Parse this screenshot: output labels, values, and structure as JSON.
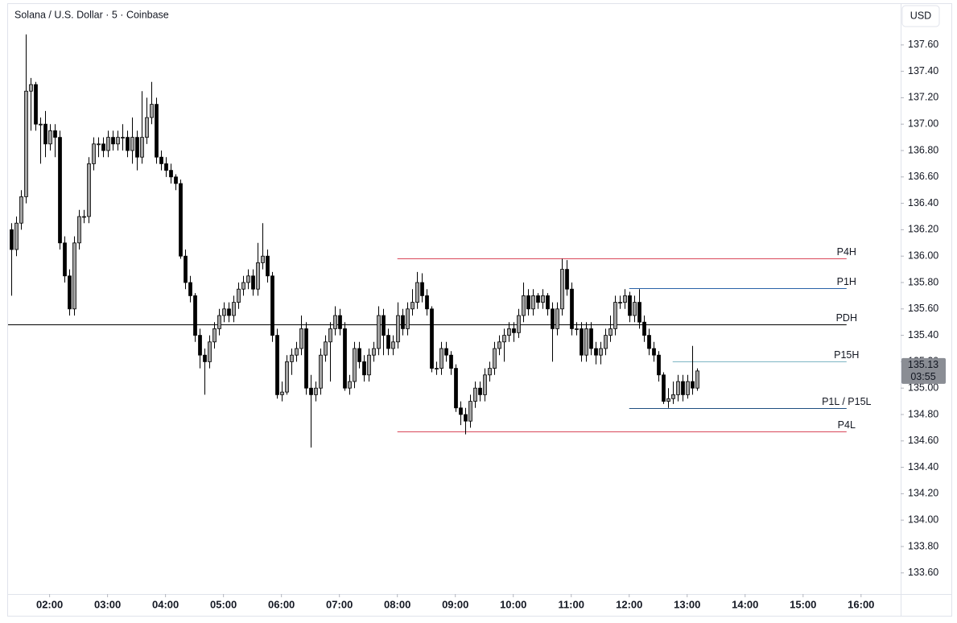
{
  "chart_data": {
    "type": "candlestick",
    "title": "Solana / U.S. Dollar · 5 · Coinbase",
    "currency": "USD",
    "last_price": 135.13,
    "countdown": "03:55",
    "up_color": "#a3a3a3",
    "down_color": "#000000",
    "xlim": [
      "01:17",
      "16:41"
    ],
    "xticks": [
      "02:00",
      "03:00",
      "04:00",
      "05:00",
      "06:00",
      "07:00",
      "08:00",
      "09:00",
      "10:00",
      "11:00",
      "12:00",
      "13:00",
      "14:00",
      "15:00",
      "16:00"
    ],
    "ylim": [
      133.44,
      137.91
    ],
    "yticks": [
      {
        "value": 133.6,
        "label": "133.60"
      },
      {
        "value": 133.8,
        "label": "133.80"
      },
      {
        "value": 134,
        "label": "134.00"
      },
      {
        "value": 134.2,
        "label": "134.20"
      },
      {
        "value": 134.4,
        "label": "134.40"
      },
      {
        "value": 134.6,
        "label": "134.60"
      },
      {
        "value": 134.8,
        "label": "134.80"
      },
      {
        "value": 135,
        "label": "135.00"
      },
      {
        "value": 135.2,
        "label": "135.20"
      },
      {
        "value": 135.4,
        "label": "135.40"
      },
      {
        "value": 135.6,
        "label": "135.60"
      },
      {
        "value": 135.8,
        "label": "135.80"
      },
      {
        "value": 136,
        "label": "136.00"
      },
      {
        "value": 136.2,
        "label": "136.20"
      },
      {
        "value": 136.4,
        "label": "136.40"
      },
      {
        "value": 136.6,
        "label": "136.60"
      },
      {
        "value": 136.8,
        "label": "136.80"
      },
      {
        "value": 137,
        "label": "137.00"
      },
      {
        "value": 137.2,
        "label": "137.20"
      },
      {
        "value": 137.4,
        "label": "137.40"
      },
      {
        "value": 137.6,
        "label": "137.60"
      }
    ],
    "levels": [
      {
        "label": "P4H",
        "value": 135.98,
        "start": "08:00",
        "end": "15:45",
        "color": "#d9485a"
      },
      {
        "label": "P1H",
        "value": 135.76,
        "start": "12:00",
        "end": "15:45",
        "color": "#2962a8"
      },
      {
        "label": "PDH",
        "value": 135.48,
        "start": "01:17",
        "end": "15:45",
        "color": "#000000"
      },
      {
        "label": "P15H",
        "value": 135.2,
        "start": "12:45",
        "end": "15:45",
        "color": "#7fb6c4"
      },
      {
        "label": "P1L / P15L",
        "value": 134.85,
        "start": "12:00",
        "end": "15:45",
        "color": "#1f4f80"
      },
      {
        "label": "P4L",
        "value": 134.67,
        "start": "08:00",
        "end": "15:45",
        "color": "#d9485a"
      }
    ],
    "x": [
      "01:20",
      "01:25",
      "01:30",
      "01:35",
      "01:40",
      "01:45",
      "01:50",
      "01:55",
      "02:00",
      "02:05",
      "02:10",
      "02:15",
      "02:20",
      "02:25",
      "02:30",
      "02:35",
      "02:40",
      "02:45",
      "02:50",
      "02:55",
      "03:00",
      "03:05",
      "03:10",
      "03:15",
      "03:20",
      "03:25",
      "03:30",
      "03:35",
      "03:40",
      "03:45",
      "03:50",
      "03:55",
      "04:00",
      "04:05",
      "04:10",
      "04:15",
      "04:20",
      "04:25",
      "04:30",
      "04:35",
      "04:40",
      "04:45",
      "04:50",
      "04:55",
      "05:00",
      "05:05",
      "05:10",
      "05:15",
      "05:20",
      "05:25",
      "05:30",
      "05:35",
      "05:40",
      "05:45",
      "05:50",
      "05:55",
      "06:00",
      "06:05",
      "06:10",
      "06:15",
      "06:20",
      "06:25",
      "06:30",
      "06:35",
      "06:40",
      "06:45",
      "06:50",
      "06:55",
      "07:00",
      "07:05",
      "07:10",
      "07:15",
      "07:20",
      "07:25",
      "07:30",
      "07:35",
      "07:40",
      "07:45",
      "07:50",
      "07:55",
      "08:00",
      "08:05",
      "08:10",
      "08:15",
      "08:20",
      "08:25",
      "08:30",
      "08:35",
      "08:40",
      "08:45",
      "08:50",
      "08:55",
      "09:00",
      "09:05",
      "09:10",
      "09:15",
      "09:20",
      "09:25",
      "09:30",
      "09:35",
      "09:40",
      "09:45",
      "09:50",
      "09:55",
      "10:00",
      "10:05",
      "10:10",
      "10:15",
      "10:20",
      "10:25",
      "10:30",
      "10:35",
      "10:40",
      "10:45",
      "10:50",
      "10:55",
      "11:00",
      "11:05",
      "11:10",
      "11:15",
      "11:20",
      "11:25",
      "11:30",
      "11:35",
      "11:40",
      "11:45",
      "11:50",
      "11:55",
      "12:00",
      "12:05",
      "12:10",
      "12:15",
      "12:20",
      "12:25",
      "12:30",
      "12:35",
      "12:40",
      "12:45",
      "12:50",
      "12:55",
      "13:00",
      "13:05",
      "13:10"
    ],
    "ohlc": [
      [
        136.2,
        136.25,
        135.7,
        136.05
      ],
      [
        136.05,
        136.3,
        136.0,
        136.25
      ],
      [
        136.25,
        136.5,
        136.2,
        136.45
      ],
      [
        136.45,
        137.68,
        136.4,
        137.25
      ],
      [
        137.25,
        137.35,
        136.95,
        137.3
      ],
      [
        137.3,
        137.32,
        136.95,
        137.0
      ],
      [
        137.0,
        137.05,
        136.7,
        137.0
      ],
      [
        137.0,
        137.1,
        136.75,
        136.85
      ],
      [
        136.85,
        137.0,
        136.8,
        136.95
      ],
      [
        136.95,
        137.0,
        136.75,
        136.9
      ],
      [
        136.9,
        136.95,
        136.05,
        136.1
      ],
      [
        136.1,
        136.15,
        135.8,
        135.85
      ],
      [
        135.85,
        135.9,
        135.55,
        135.6
      ],
      [
        135.6,
        136.15,
        135.55,
        136.1
      ],
      [
        136.1,
        136.35,
        136.05,
        136.3
      ],
      [
        136.3,
        136.35,
        136.25,
        136.3
      ],
      [
        136.3,
        136.75,
        136.25,
        136.7
      ],
      [
        136.7,
        136.9,
        136.65,
        136.85
      ],
      [
        136.85,
        136.9,
        136.75,
        136.85
      ],
      [
        136.85,
        136.9,
        136.75,
        136.8
      ],
      [
        136.8,
        136.95,
        136.75,
        136.9
      ],
      [
        136.9,
        136.95,
        136.8,
        136.85
      ],
      [
        136.85,
        136.95,
        136.8,
        136.9
      ],
      [
        136.9,
        137.0,
        136.8,
        136.9
      ],
      [
        136.9,
        136.95,
        136.75,
        136.8
      ],
      [
        136.8,
        137.05,
        136.7,
        136.9
      ],
      [
        136.9,
        136.95,
        136.65,
        136.75
      ],
      [
        136.75,
        137.25,
        136.7,
        136.9
      ],
      [
        136.9,
        137.2,
        136.85,
        137.05
      ],
      [
        137.05,
        137.32,
        137.0,
        137.15
      ],
      [
        137.15,
        137.2,
        136.7,
        136.75
      ],
      [
        136.75,
        136.8,
        136.65,
        136.7
      ],
      [
        136.7,
        136.75,
        136.6,
        136.65
      ],
      [
        136.65,
        136.7,
        136.55,
        136.6
      ],
      [
        136.6,
        136.62,
        136.5,
        136.55
      ],
      [
        136.55,
        136.58,
        135.98,
        136.0
      ],
      [
        136.0,
        136.05,
        135.75,
        135.8
      ],
      [
        135.8,
        135.85,
        135.65,
        135.7
      ],
      [
        135.7,
        135.72,
        135.35,
        135.4
      ],
      [
        135.4,
        135.45,
        135.15,
        135.25
      ],
      [
        135.25,
        135.3,
        134.95,
        135.2
      ],
      [
        135.2,
        135.4,
        135.15,
        135.35
      ],
      [
        135.35,
        135.5,
        135.3,
        135.45
      ],
      [
        135.45,
        135.6,
        135.4,
        135.55
      ],
      [
        135.55,
        135.65,
        135.5,
        135.6
      ],
      [
        135.6,
        135.65,
        135.5,
        135.55
      ],
      [
        135.55,
        135.7,
        135.5,
        135.65
      ],
      [
        135.65,
        135.8,
        135.6,
        135.75
      ],
      [
        135.75,
        135.85,
        135.7,
        135.8
      ],
      [
        135.8,
        135.9,
        135.75,
        135.85
      ],
      [
        135.85,
        135.9,
        135.7,
        135.75
      ],
      [
        135.75,
        136.1,
        135.7,
        135.95
      ],
      [
        135.95,
        136.25,
        135.9,
        136.0
      ],
      [
        136.0,
        136.05,
        135.8,
        135.85
      ],
      [
        135.85,
        135.88,
        135.35,
        135.4
      ],
      [
        135.4,
        135.45,
        134.92,
        134.95
      ],
      [
        134.95,
        135.05,
        134.9,
        134.97
      ],
      [
        134.97,
        135.25,
        134.95,
        135.2
      ],
      [
        135.2,
        135.3,
        135.1,
        135.25
      ],
      [
        135.25,
        135.35,
        135.2,
        135.3
      ],
      [
        135.3,
        135.55,
        135.25,
        135.45
      ],
      [
        135.45,
        135.5,
        134.95,
        135.0
      ],
      [
        135.0,
        135.1,
        134.55,
        134.95
      ],
      [
        134.95,
        135.05,
        134.9,
        135.0
      ],
      [
        135.0,
        135.3,
        134.95,
        135.25
      ],
      [
        135.25,
        135.4,
        135.2,
        135.35
      ],
      [
        135.35,
        135.5,
        135.05,
        135.45
      ],
      [
        135.45,
        135.62,
        135.4,
        135.55
      ],
      [
        135.55,
        135.6,
        135.4,
        135.45
      ],
      [
        135.45,
        135.5,
        134.98,
        135.0
      ],
      [
        135.0,
        135.1,
        134.95,
        135.05
      ],
      [
        135.05,
        135.35,
        135.0,
        135.3
      ],
      [
        135.3,
        135.35,
        135.15,
        135.2
      ],
      [
        135.2,
        135.25,
        135.05,
        135.1
      ],
      [
        135.1,
        135.3,
        135.05,
        135.25
      ],
      [
        135.25,
        135.35,
        135.2,
        135.3
      ],
      [
        135.3,
        135.62,
        135.25,
        135.55
      ],
      [
        135.55,
        135.6,
        135.25,
        135.4
      ],
      [
        135.4,
        135.45,
        135.25,
        135.3
      ],
      [
        135.3,
        135.4,
        135.25,
        135.35
      ],
      [
        135.35,
        135.65,
        135.3,
        135.55
      ],
      [
        135.55,
        135.6,
        135.4,
        135.45
      ],
      [
        135.45,
        135.65,
        135.4,
        135.6
      ],
      [
        135.6,
        135.75,
        135.55,
        135.65
      ],
      [
        135.65,
        135.88,
        135.6,
        135.8
      ],
      [
        135.8,
        135.87,
        135.65,
        135.7
      ],
      [
        135.7,
        135.75,
        135.55,
        135.6
      ],
      [
        135.6,
        135.62,
        135.12,
        135.15
      ],
      [
        135.15,
        135.2,
        135.1,
        135.15
      ],
      [
        135.15,
        135.35,
        135.1,
        135.3
      ],
      [
        135.3,
        135.35,
        135.2,
        135.25
      ],
      [
        135.25,
        135.28,
        135.1,
        135.15
      ],
      [
        135.15,
        135.18,
        134.82,
        134.85
      ],
      [
        134.85,
        134.9,
        134.72,
        134.8
      ],
      [
        134.8,
        134.85,
        134.65,
        134.75
      ],
      [
        134.75,
        134.95,
        134.7,
        134.9
      ],
      [
        134.9,
        135.05,
        134.85,
        135.0
      ],
      [
        135.0,
        135.05,
        134.9,
        134.95
      ],
      [
        134.95,
        135.15,
        134.9,
        135.1
      ],
      [
        135.1,
        135.2,
        135.05,
        135.15
      ],
      [
        135.15,
        135.35,
        135.1,
        135.3
      ],
      [
        135.3,
        135.4,
        135.25,
        135.35
      ],
      [
        135.35,
        135.45,
        135.2,
        135.4
      ],
      [
        135.4,
        135.5,
        135.35,
        135.45
      ],
      [
        135.45,
        135.5,
        135.35,
        135.42
      ],
      [
        135.42,
        135.6,
        135.38,
        135.55
      ],
      [
        135.55,
        135.8,
        135.5,
        135.7
      ],
      [
        135.7,
        135.75,
        135.55,
        135.6
      ],
      [
        135.6,
        135.75,
        135.55,
        135.7
      ],
      [
        135.7,
        135.72,
        135.6,
        135.65
      ],
      [
        135.65,
        135.75,
        135.6,
        135.7
      ],
      [
        135.7,
        135.72,
        135.55,
        135.6
      ],
      [
        135.6,
        135.65,
        135.2,
        135.45
      ],
      [
        135.45,
        135.65,
        135.4,
        135.6
      ],
      [
        135.6,
        135.98,
        135.55,
        135.9
      ],
      [
        135.9,
        135.97,
        135.7,
        135.75
      ],
      [
        135.75,
        135.8,
        135.4,
        135.45
      ],
      [
        135.45,
        135.5,
        135.4,
        135.45
      ],
      [
        135.45,
        135.5,
        135.2,
        135.25
      ],
      [
        135.25,
        135.5,
        135.2,
        135.45
      ],
      [
        135.45,
        135.5,
        135.25,
        135.3
      ],
      [
        135.3,
        135.35,
        135.18,
        135.25
      ],
      [
        135.25,
        135.35,
        135.18,
        135.3
      ],
      [
        135.3,
        135.45,
        135.25,
        135.4
      ],
      [
        135.4,
        135.55,
        135.35,
        135.45
      ],
      [
        135.45,
        135.7,
        135.4,
        135.65
      ],
      [
        135.65,
        135.7,
        135.6,
        135.65
      ],
      [
        135.65,
        135.75,
        135.6,
        135.7
      ],
      [
        135.7,
        135.73,
        135.5,
        135.55
      ],
      [
        135.55,
        135.7,
        135.5,
        135.65
      ],
      [
        135.65,
        135.75,
        135.45,
        135.5
      ],
      [
        135.5,
        135.55,
        135.35,
        135.4
      ],
      [
        135.4,
        135.45,
        135.25,
        135.3
      ],
      [
        135.3,
        135.35,
        135.2,
        135.25
      ],
      [
        135.25,
        135.28,
        135.05,
        135.1
      ],
      [
        135.1,
        135.12,
        134.88,
        134.9
      ],
      [
        134.9,
        135.0,
        134.85,
        134.92
      ],
      [
        134.92,
        135.05,
        134.88,
        134.95
      ],
      [
        134.95,
        135.1,
        134.9,
        135.05
      ],
      [
        135.05,
        135.1,
        134.9,
        134.95
      ],
      [
        134.95,
        135.1,
        134.92,
        135.05
      ],
      [
        135.05,
        135.32,
        134.95,
        135.0
      ],
      [
        135.0,
        135.15,
        134.98,
        135.13
      ]
    ]
  }
}
